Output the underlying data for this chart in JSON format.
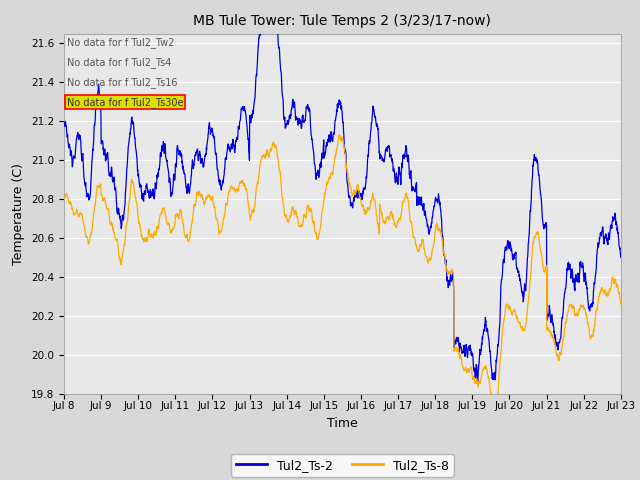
{
  "title": "MB Tule Tower: Tule Temps 2 (3/23/17-now)",
  "xlabel": "Time",
  "ylabel": "Temperature (C)",
  "ylim": [
    19.8,
    21.65
  ],
  "yticks": [
    19.8,
    20.0,
    20.2,
    20.4,
    20.6,
    20.8,
    21.0,
    21.2,
    21.4,
    21.6
  ],
  "xtick_labels": [
    "Jul 8",
    "Jul 9",
    "Jul 10",
    "Jul 11",
    "Jul 12",
    "Jul 13",
    "Jul 14",
    "Jul 15",
    "Jul 16",
    "Jul 17",
    "Jul 18",
    "Jul 19",
    "Jul 20",
    "Jul 21",
    "Jul 22",
    "Jul 23"
  ],
  "color_blue": "#0000dd",
  "color_orange": "#ffaa00",
  "legend_entries": [
    "Tul2_Ts-2",
    "Tul2_Ts-8"
  ],
  "no_data_text": [
    "No data for f Tul2_Tw2",
    "No data for f Tul2_Ts4",
    "No data for f Tul2_Ts16",
    "No data for f Tul2_Ts30e"
  ],
  "background_color": "#d8d8d8",
  "plot_bg_color": "#e8e8e8",
  "grid_color": "#ffffff"
}
